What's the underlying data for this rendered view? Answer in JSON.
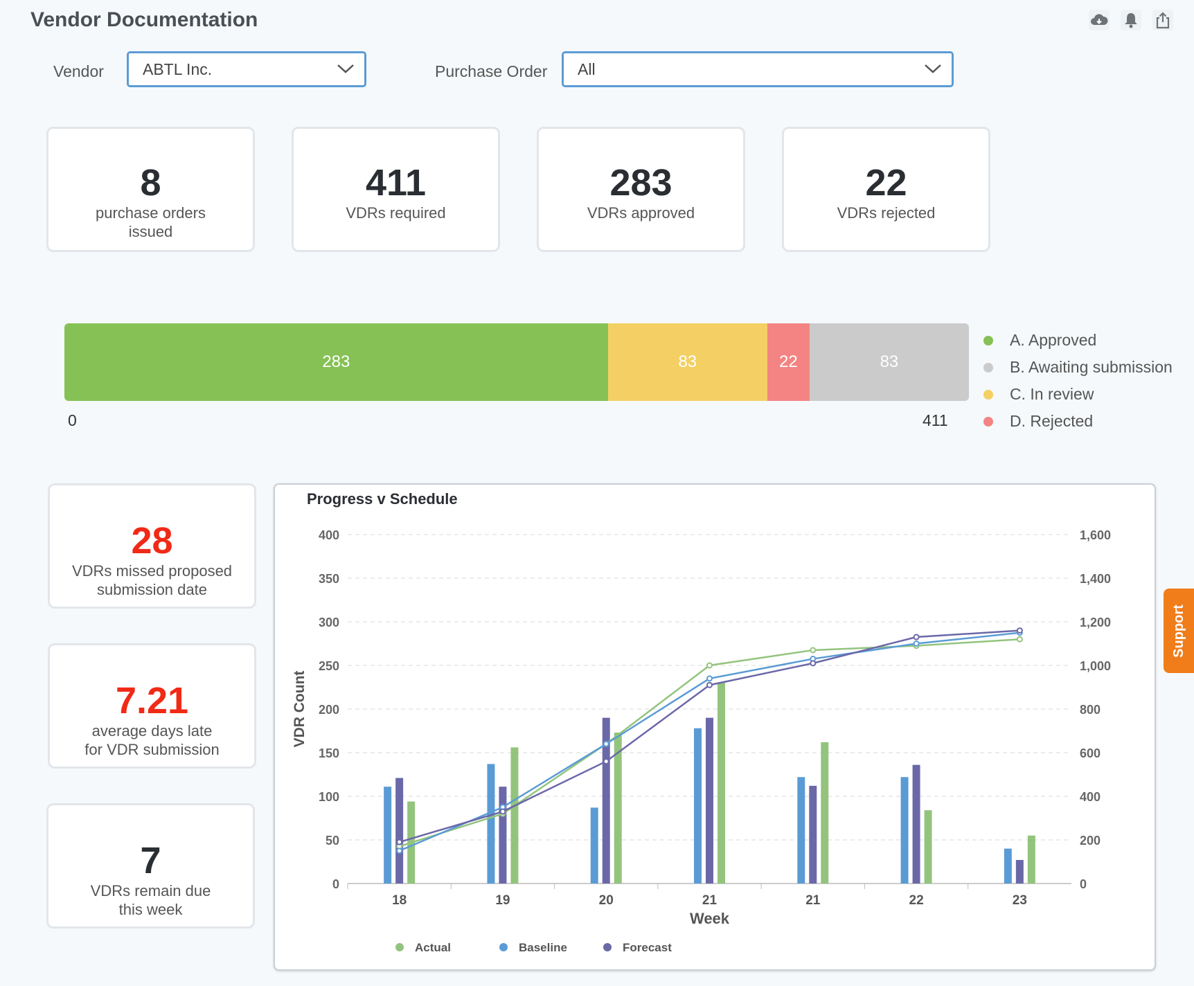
{
  "header": {
    "title": "Vendor Documentation",
    "icons": [
      "cloud-download-icon",
      "bell-icon",
      "share-icon"
    ]
  },
  "filters": {
    "vendor_label": "Vendor",
    "vendor_value": "ABTL Inc.",
    "po_label": "Purchase Order",
    "po_value": "All"
  },
  "kpis": [
    {
      "value": "8",
      "label": "purchase orders\nissued"
    },
    {
      "value": "411",
      "label": "VDRs required"
    },
    {
      "value": "283",
      "label": "VDRs approved"
    },
    {
      "value": "22",
      "label": "VDRs rejected"
    }
  ],
  "status_bar": {
    "total": 411,
    "min_label": "0",
    "max_label": "411",
    "segments": [
      {
        "name": "A. Approved",
        "value": 283,
        "label": "283",
        "color": "#86c155"
      },
      {
        "name": "C. In review",
        "value": 83,
        "label": "83",
        "color": "#f4d064"
      },
      {
        "name": "D. Rejected",
        "value": 22,
        "label": "22",
        "color": "#f38483"
      },
      {
        "name": "B. Awaiting submission",
        "value": 83,
        "label": "83",
        "color": "#cbcbcb"
      }
    ],
    "legend": [
      {
        "label": "A. Approved",
        "color": "#86c155"
      },
      {
        "label": "B. Awaiting submission",
        "color": "#cbcbcb"
      },
      {
        "label": "C. In review",
        "color": "#f4d064"
      },
      {
        "label": "D. Rejected",
        "color": "#f38483"
      }
    ]
  },
  "side_kpis": [
    {
      "value": "28",
      "label": "VDRs missed proposed\nsubmission date",
      "color": "red"
    },
    {
      "value": "7.21",
      "label": "average days late\nfor VDR submission",
      "color": "red"
    },
    {
      "value": "7",
      "label": "VDRs remain due\nthis week",
      "color": "dark"
    }
  ],
  "chart_data": {
    "type": "bar",
    "title": "Progress v Schedule",
    "xlabel": "Week",
    "ylabel": "VDR Count",
    "ylim": [
      0,
      400
    ],
    "y_ticks": [
      0,
      50,
      100,
      150,
      200,
      250,
      300,
      350,
      400
    ],
    "y2lim": [
      0,
      1600
    ],
    "y2_ticks": [
      "0",
      "200",
      "400",
      "600",
      "800",
      "1,000",
      "1,200",
      "1,400",
      "1,600"
    ],
    "categories": [
      "18",
      "19",
      "20",
      "21",
      "21",
      "22",
      "23"
    ],
    "grid": true,
    "legend_position": "bottom",
    "bar_series": [
      {
        "name": "Baseline",
        "color": "#5b9bd5",
        "values": [
          111,
          137,
          87,
          178,
          122,
          122,
          40
        ]
      },
      {
        "name": "Forecast",
        "color": "#6b68a8",
        "values": [
          121,
          111,
          190,
          190,
          112,
          136,
          27
        ]
      },
      {
        "name": "Actual",
        "color": "#93c47d",
        "values": [
          94,
          156,
          173,
          230,
          162,
          84,
          55
        ]
      }
    ],
    "line_series": [
      {
        "name": "Actual",
        "axis": "right",
        "color": "#93c47d",
        "values": [
          170,
          320,
          640,
          1000,
          1070,
          1090,
          1120
        ]
      },
      {
        "name": "Baseline",
        "axis": "right",
        "color": "#5b9bd5",
        "values": [
          150,
          350,
          640,
          940,
          1030,
          1100,
          1150
        ]
      },
      {
        "name": "Forecast",
        "axis": "right",
        "color": "#6b68a8",
        "values": [
          190,
          330,
          560,
          910,
          1010,
          1130,
          1160
        ]
      }
    ],
    "legend": [
      {
        "label": "Actual",
        "color": "#93c47d"
      },
      {
        "label": "Baseline",
        "color": "#5b9bd5"
      },
      {
        "label": "Forecast",
        "color": "#6b68a8"
      }
    ]
  },
  "support": {
    "label": "Support"
  }
}
